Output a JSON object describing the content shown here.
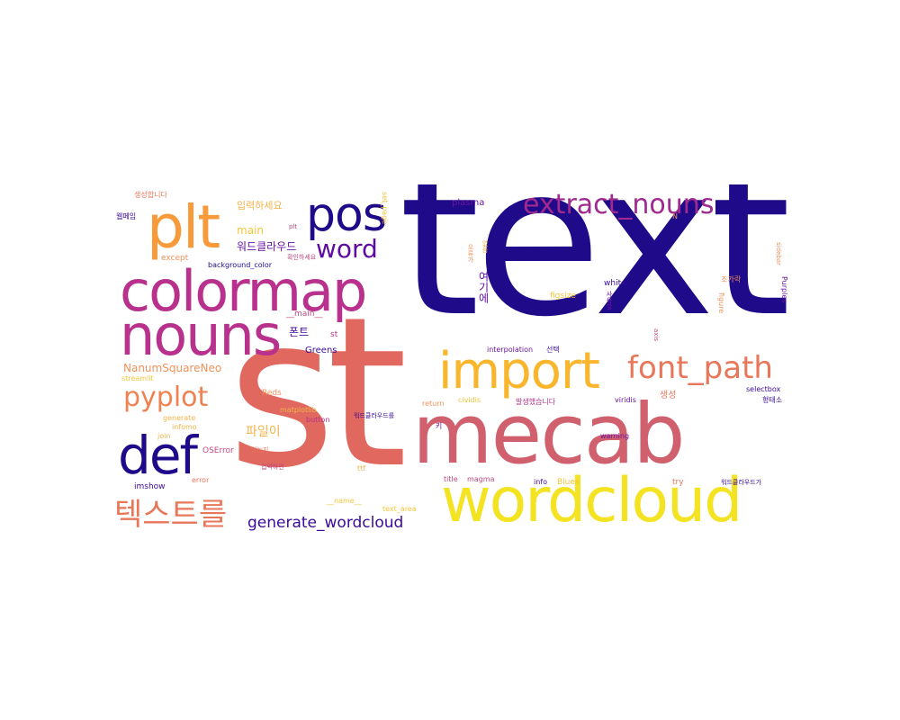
{
  "words": [
    {
      "text": "text",
      "color": "#1f0a8a"
    },
    {
      "text": "st",
      "color": "#e0685f"
    },
    {
      "text": "mecab",
      "color": "#d1606e"
    },
    {
      "text": "wordcloud",
      "color": "#f3e323"
    },
    {
      "text": "colormap",
      "color": "#b8328d"
    },
    {
      "text": "nouns",
      "color": "#b8328d"
    },
    {
      "text": "plt",
      "color": "#f89a3a"
    },
    {
      "text": "pos",
      "color": "#1f0a8a"
    },
    {
      "text": "import",
      "color": "#f9b52b"
    },
    {
      "text": "font_path",
      "color": "#e8775a"
    },
    {
      "text": "extract_nouns",
      "color": "#a02a8f"
    },
    {
      "text": "word",
      "color": "#5c0ca0"
    },
    {
      "text": "def",
      "color": "#1f0a8a"
    },
    {
      "text": "pyplot",
      "color": "#f08252"
    },
    {
      "text": "텍스트를",
      "color": "#e8775a"
    },
    {
      "text": "generate_wordcloud",
      "color": "#3a0a9a"
    },
    {
      "text": "NanumSquareNeo",
      "color": "#f0925a"
    },
    {
      "text": "입력하세요",
      "color": "#f3b44a"
    },
    {
      "text": "main",
      "color": "#f7c53a"
    },
    {
      "text": "워드클라우드",
      "color": "#6a14a0"
    },
    {
      "text": "폰트",
      "color": "#4a0c9c"
    },
    {
      "text": "파일이",
      "color": "#f3b44a"
    },
    {
      "text": "plasma",
      "color": "#6a14a0"
    },
    {
      "text": "여기에",
      "color": "#5c0ca0"
    },
    {
      "text": "생성합니다",
      "color": "#e8775a"
    },
    {
      "text": "웹페임",
      "color": "#3a0a9a"
    },
    {
      "text": "except",
      "color": "#f0925a"
    },
    {
      "text": "background_color",
      "color": "#1f0a8a"
    },
    {
      "text": "__main__",
      "color": "#c04a80"
    },
    {
      "text": "st",
      "color": "#b8328d"
    },
    {
      "text": "Greens",
      "color": "#3a0a9a"
    },
    {
      "text": "streamlit",
      "color": "#f7c53a"
    },
    {
      "text": "Reds",
      "color": "#f0925a"
    },
    {
      "text": "matplotlib",
      "color": "#f3b44a"
    },
    {
      "text": "generate",
      "color": "#f3b44a"
    },
    {
      "text": "join",
      "color": "#f3b44a"
    },
    {
      "text": "infomo",
      "color": "#f3b44a"
    },
    {
      "text": "button",
      "color": "#b8328d"
    },
    {
      "text": "OSError",
      "color": "#c04a80"
    },
    {
      "text": "있는지",
      "color": "#e8775a"
    },
    {
      "text": "error",
      "color": "#e8775a"
    },
    {
      "text": "imshow",
      "color": "#3a0a9a"
    },
    {
      "text": "입력하면",
      "color": "#c04a80"
    },
    {
      "text": "ttf",
      "color": "#f3b44a"
    },
    {
      "text": "__name__",
      "color": "#f7c53a"
    },
    {
      "text": "text_area",
      "color": "#f7c53a"
    },
    {
      "text": "white",
      "color": "#3a0a9a"
    },
    {
      "text": "interpolation",
      "color": "#6a14a0"
    },
    {
      "text": "선택",
      "color": "#3a0a9a"
    },
    {
      "text": "figsize",
      "color": "#f7c53a"
    },
    {
      "text": "return",
      "color": "#f0925a"
    },
    {
      "text": "cividis",
      "color": "#f7c53a"
    },
    {
      "text": "발생했습니다",
      "color": "#b8328d"
    },
    {
      "text": "viridis",
      "color": "#6a14a0"
    },
    {
      "text": "생성",
      "color": "#e8775a"
    },
    {
      "text": "selectbox",
      "color": "#3a0a9a"
    },
    {
      "text": "찾을 수",
      "color": "#3a0a9a"
    },
    {
      "text": "warning",
      "color": "#6a14a0"
    },
    {
      "text": "title",
      "color": "#c04a80"
    },
    {
      "text": "magma",
      "color": "#c04a80"
    },
    {
      "text": "info",
      "color": "#3a0a9a"
    },
    {
      "text": "Blues",
      "color": "#f7c53a"
    },
    {
      "text": "try",
      "color": "#e8775a"
    },
    {
      "text": "워드클라우드가",
      "color": "#3a0a9a"
    },
    {
      "text": "워드클라우드를",
      "color": "#3a0a9a"
    },
    {
      "text": "Purples",
      "color": "#6a14a0"
    },
    {
      "text": "figure",
      "color": "#f0925a"
    },
    {
      "text": "조가락",
      "color": "#f0925a"
    },
    {
      "text": "사용할",
      "color": "#6a14a0"
    },
    {
      "text": "확인하세요",
      "color": "#c04a80"
    },
    {
      "text": "N",
      "color": "#f0925a"
    },
    {
      "text": "axis",
      "color": "#c04a80"
    },
    {
      "text": "형태소",
      "color": "#3a0a9a"
    },
    {
      "text": "키",
      "color": "#6a14a0"
    },
    {
      "text": "오류가",
      "color": "#f0925a"
    },
    {
      "text": "set_page",
      "color": "#f7c53a"
    },
    {
      "text": "plt",
      "color": "#c04a80"
    },
    {
      "text": "없음",
      "color": "#f3b44a"
    },
    {
      "text": "sidebar",
      "color": "#f0925a"
    }
  ]
}
